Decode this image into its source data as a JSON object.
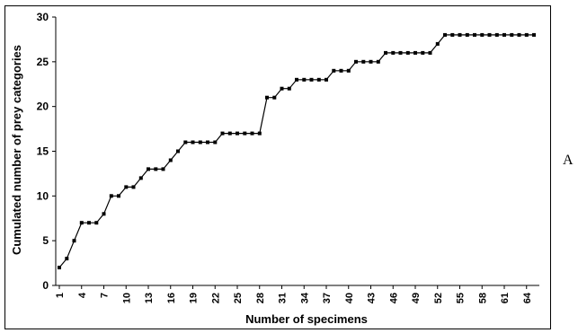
{
  "panel_letter": "A",
  "chart_data": {
    "type": "line",
    "xlabel": "Number of specimens",
    "ylabel": "Cumulated number of prey categories",
    "x_tick_labels": [
      "1",
      "4",
      "7",
      "10",
      "13",
      "16",
      "19",
      "22",
      "25",
      "28",
      "31",
      "34",
      "37",
      "40",
      "43",
      "46",
      "49",
      "52",
      "55",
      "58",
      "61",
      "64"
    ],
    "y_tick_labels": [
      "0",
      "5",
      "10",
      "15",
      "20",
      "25",
      "30"
    ],
    "xlim": [
      1,
      65
    ],
    "ylim": [
      0,
      30
    ],
    "grid": false,
    "legend": "none",
    "line_color": "#000000",
    "marker": "square",
    "x": [
      1,
      2,
      3,
      4,
      5,
      6,
      7,
      8,
      9,
      10,
      11,
      12,
      13,
      14,
      15,
      16,
      17,
      18,
      19,
      20,
      21,
      22,
      23,
      24,
      25,
      26,
      27,
      28,
      29,
      30,
      31,
      32,
      33,
      34,
      35,
      36,
      37,
      38,
      39,
      40,
      41,
      42,
      43,
      44,
      45,
      46,
      47,
      48,
      49,
      50,
      51,
      52,
      53,
      54,
      55,
      56,
      57,
      58,
      59,
      60,
      61,
      62,
      63,
      64,
      65
    ],
    "values": [
      2,
      3,
      5,
      7,
      7,
      7,
      8,
      10,
      10,
      11,
      11,
      12,
      13,
      13,
      13,
      14,
      15,
      16,
      16,
      16,
      16,
      16,
      17,
      17,
      17,
      17,
      17,
      17,
      21,
      21,
      22,
      22,
      23,
      23,
      23,
      23,
      23,
      24,
      24,
      24,
      25,
      25,
      25,
      25,
      26,
      26,
      26,
      26,
      26,
      26,
      26,
      27,
      28,
      28,
      28,
      28,
      28,
      28,
      28,
      28,
      28,
      28,
      28,
      28,
      28
    ]
  }
}
